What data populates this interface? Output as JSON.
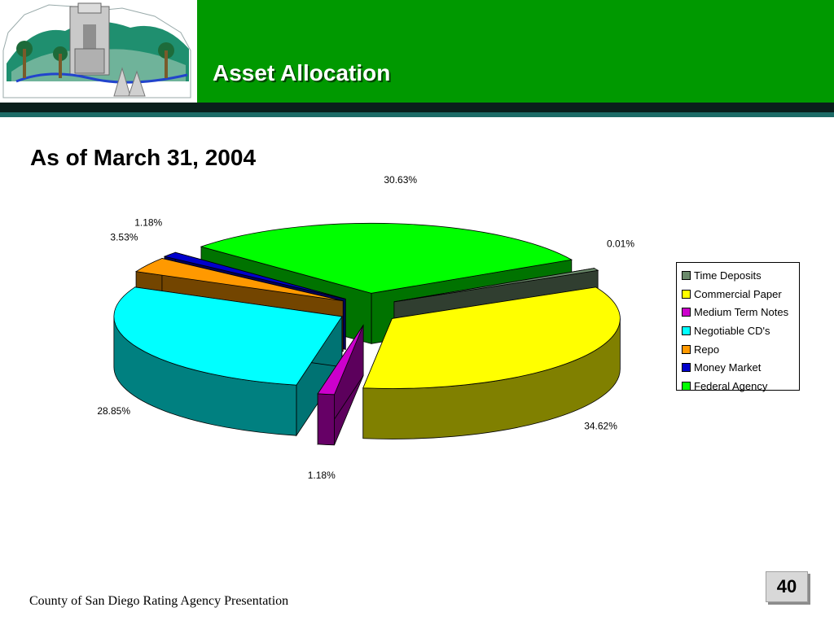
{
  "header": {
    "title": "Asset Allocation"
  },
  "subtitle": "As of March 31, 2004",
  "footer": {
    "text": "County of San Diego Rating Agency Presentation",
    "page_number": "40"
  },
  "colors": {
    "title_bar": "#009900",
    "dark_band": "#0a1f1c",
    "teal_band": "#1c6b66"
  },
  "chart_data": {
    "type": "pie",
    "labels": [
      "Time Deposits",
      "Commercial Paper",
      "Medium Term Notes",
      "Negotiable CD's",
      "Repo",
      "Money Market",
      "Federal Agency"
    ],
    "values": [
      0.01,
      34.62,
      1.18,
      28.85,
      3.53,
      1.18,
      30.63
    ],
    "value_labels": [
      "0.01%",
      "34.62%",
      "1.18%",
      "28.85%",
      "3.53%",
      "1.18%",
      "30.63%"
    ],
    "colors": [
      "#6b8a6b",
      "#ffff00",
      "#cc00cc",
      "#00ffff",
      "#ff9900",
      "#0000cc",
      "#00ff00"
    ],
    "exploded": true,
    "three_d": true,
    "legend_position": "right"
  }
}
